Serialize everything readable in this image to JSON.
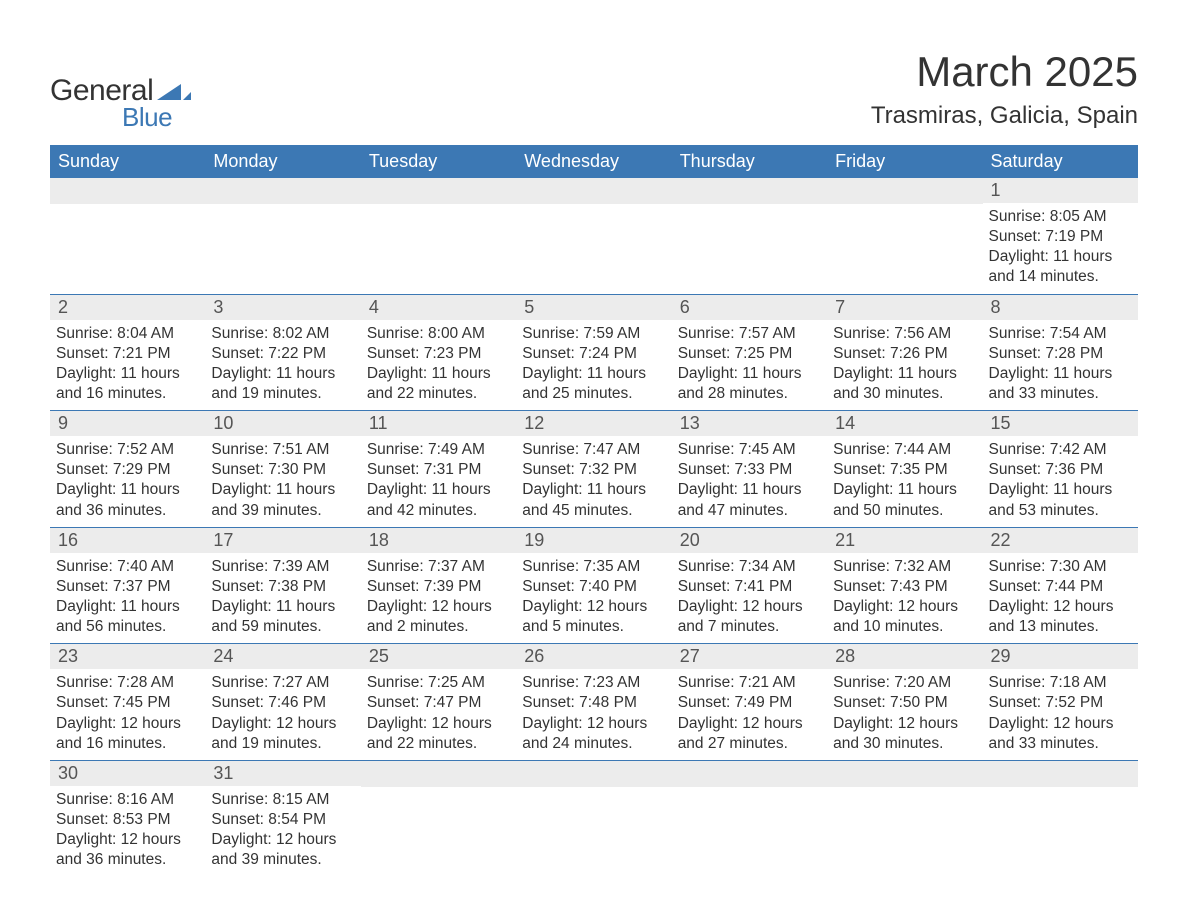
{
  "logo": {
    "text_general": "General",
    "text_blue": "Blue",
    "triangle_color": "#3c78b4"
  },
  "header": {
    "month_title": "March 2025",
    "location": "Trasmiras, Galicia, Spain"
  },
  "colors": {
    "header_bg": "#3c78b4",
    "header_text": "#ffffff",
    "daynum_bg": "#ececec",
    "daynum_text": "#555555",
    "body_text": "#333333",
    "row_divider": "#3c78b4",
    "page_bg": "#ffffff"
  },
  "typography": {
    "month_title_fontsize": 42,
    "location_fontsize": 24,
    "weekday_fontsize": 18,
    "daynum_fontsize": 18,
    "body_fontsize": 15.5,
    "font_family": "Arial"
  },
  "calendar": {
    "type": "table",
    "columns": [
      "Sunday",
      "Monday",
      "Tuesday",
      "Wednesday",
      "Thursday",
      "Friday",
      "Saturday"
    ],
    "weeks": [
      [
        null,
        null,
        null,
        null,
        null,
        null,
        {
          "day": "1",
          "sunrise": "Sunrise: 8:05 AM",
          "sunset": "Sunset: 7:19 PM",
          "daylight1": "Daylight: 11 hours",
          "daylight2": "and 14 minutes."
        }
      ],
      [
        {
          "day": "2",
          "sunrise": "Sunrise: 8:04 AM",
          "sunset": "Sunset: 7:21 PM",
          "daylight1": "Daylight: 11 hours",
          "daylight2": "and 16 minutes."
        },
        {
          "day": "3",
          "sunrise": "Sunrise: 8:02 AM",
          "sunset": "Sunset: 7:22 PM",
          "daylight1": "Daylight: 11 hours",
          "daylight2": "and 19 minutes."
        },
        {
          "day": "4",
          "sunrise": "Sunrise: 8:00 AM",
          "sunset": "Sunset: 7:23 PM",
          "daylight1": "Daylight: 11 hours",
          "daylight2": "and 22 minutes."
        },
        {
          "day": "5",
          "sunrise": "Sunrise: 7:59 AM",
          "sunset": "Sunset: 7:24 PM",
          "daylight1": "Daylight: 11 hours",
          "daylight2": "and 25 minutes."
        },
        {
          "day": "6",
          "sunrise": "Sunrise: 7:57 AM",
          "sunset": "Sunset: 7:25 PM",
          "daylight1": "Daylight: 11 hours",
          "daylight2": "and 28 minutes."
        },
        {
          "day": "7",
          "sunrise": "Sunrise: 7:56 AM",
          "sunset": "Sunset: 7:26 PM",
          "daylight1": "Daylight: 11 hours",
          "daylight2": "and 30 minutes."
        },
        {
          "day": "8",
          "sunrise": "Sunrise: 7:54 AM",
          "sunset": "Sunset: 7:28 PM",
          "daylight1": "Daylight: 11 hours",
          "daylight2": "and 33 minutes."
        }
      ],
      [
        {
          "day": "9",
          "sunrise": "Sunrise: 7:52 AM",
          "sunset": "Sunset: 7:29 PM",
          "daylight1": "Daylight: 11 hours",
          "daylight2": "and 36 minutes."
        },
        {
          "day": "10",
          "sunrise": "Sunrise: 7:51 AM",
          "sunset": "Sunset: 7:30 PM",
          "daylight1": "Daylight: 11 hours",
          "daylight2": "and 39 minutes."
        },
        {
          "day": "11",
          "sunrise": "Sunrise: 7:49 AM",
          "sunset": "Sunset: 7:31 PM",
          "daylight1": "Daylight: 11 hours",
          "daylight2": "and 42 minutes."
        },
        {
          "day": "12",
          "sunrise": "Sunrise: 7:47 AM",
          "sunset": "Sunset: 7:32 PM",
          "daylight1": "Daylight: 11 hours",
          "daylight2": "and 45 minutes."
        },
        {
          "day": "13",
          "sunrise": "Sunrise: 7:45 AM",
          "sunset": "Sunset: 7:33 PM",
          "daylight1": "Daylight: 11 hours",
          "daylight2": "and 47 minutes."
        },
        {
          "day": "14",
          "sunrise": "Sunrise: 7:44 AM",
          "sunset": "Sunset: 7:35 PM",
          "daylight1": "Daylight: 11 hours",
          "daylight2": "and 50 minutes."
        },
        {
          "day": "15",
          "sunrise": "Sunrise: 7:42 AM",
          "sunset": "Sunset: 7:36 PM",
          "daylight1": "Daylight: 11 hours",
          "daylight2": "and 53 minutes."
        }
      ],
      [
        {
          "day": "16",
          "sunrise": "Sunrise: 7:40 AM",
          "sunset": "Sunset: 7:37 PM",
          "daylight1": "Daylight: 11 hours",
          "daylight2": "and 56 minutes."
        },
        {
          "day": "17",
          "sunrise": "Sunrise: 7:39 AM",
          "sunset": "Sunset: 7:38 PM",
          "daylight1": "Daylight: 11 hours",
          "daylight2": "and 59 minutes."
        },
        {
          "day": "18",
          "sunrise": "Sunrise: 7:37 AM",
          "sunset": "Sunset: 7:39 PM",
          "daylight1": "Daylight: 12 hours",
          "daylight2": "and 2 minutes."
        },
        {
          "day": "19",
          "sunrise": "Sunrise: 7:35 AM",
          "sunset": "Sunset: 7:40 PM",
          "daylight1": "Daylight: 12 hours",
          "daylight2": "and 5 minutes."
        },
        {
          "day": "20",
          "sunrise": "Sunrise: 7:34 AM",
          "sunset": "Sunset: 7:41 PM",
          "daylight1": "Daylight: 12 hours",
          "daylight2": "and 7 minutes."
        },
        {
          "day": "21",
          "sunrise": "Sunrise: 7:32 AM",
          "sunset": "Sunset: 7:43 PM",
          "daylight1": "Daylight: 12 hours",
          "daylight2": "and 10 minutes."
        },
        {
          "day": "22",
          "sunrise": "Sunrise: 7:30 AM",
          "sunset": "Sunset: 7:44 PM",
          "daylight1": "Daylight: 12 hours",
          "daylight2": "and 13 minutes."
        }
      ],
      [
        {
          "day": "23",
          "sunrise": "Sunrise: 7:28 AM",
          "sunset": "Sunset: 7:45 PM",
          "daylight1": "Daylight: 12 hours",
          "daylight2": "and 16 minutes."
        },
        {
          "day": "24",
          "sunrise": "Sunrise: 7:27 AM",
          "sunset": "Sunset: 7:46 PM",
          "daylight1": "Daylight: 12 hours",
          "daylight2": "and 19 minutes."
        },
        {
          "day": "25",
          "sunrise": "Sunrise: 7:25 AM",
          "sunset": "Sunset: 7:47 PM",
          "daylight1": "Daylight: 12 hours",
          "daylight2": "and 22 minutes."
        },
        {
          "day": "26",
          "sunrise": "Sunrise: 7:23 AM",
          "sunset": "Sunset: 7:48 PM",
          "daylight1": "Daylight: 12 hours",
          "daylight2": "and 24 minutes."
        },
        {
          "day": "27",
          "sunrise": "Sunrise: 7:21 AM",
          "sunset": "Sunset: 7:49 PM",
          "daylight1": "Daylight: 12 hours",
          "daylight2": "and 27 minutes."
        },
        {
          "day": "28",
          "sunrise": "Sunrise: 7:20 AM",
          "sunset": "Sunset: 7:50 PM",
          "daylight1": "Daylight: 12 hours",
          "daylight2": "and 30 minutes."
        },
        {
          "day": "29",
          "sunrise": "Sunrise: 7:18 AM",
          "sunset": "Sunset: 7:52 PM",
          "daylight1": "Daylight: 12 hours",
          "daylight2": "and 33 minutes."
        }
      ],
      [
        {
          "day": "30",
          "sunrise": "Sunrise: 8:16 AM",
          "sunset": "Sunset: 8:53 PM",
          "daylight1": "Daylight: 12 hours",
          "daylight2": "and 36 minutes."
        },
        {
          "day": "31",
          "sunrise": "Sunrise: 8:15 AM",
          "sunset": "Sunset: 8:54 PM",
          "daylight1": "Daylight: 12 hours",
          "daylight2": "and 39 minutes."
        },
        null,
        null,
        null,
        null,
        null
      ]
    ]
  }
}
